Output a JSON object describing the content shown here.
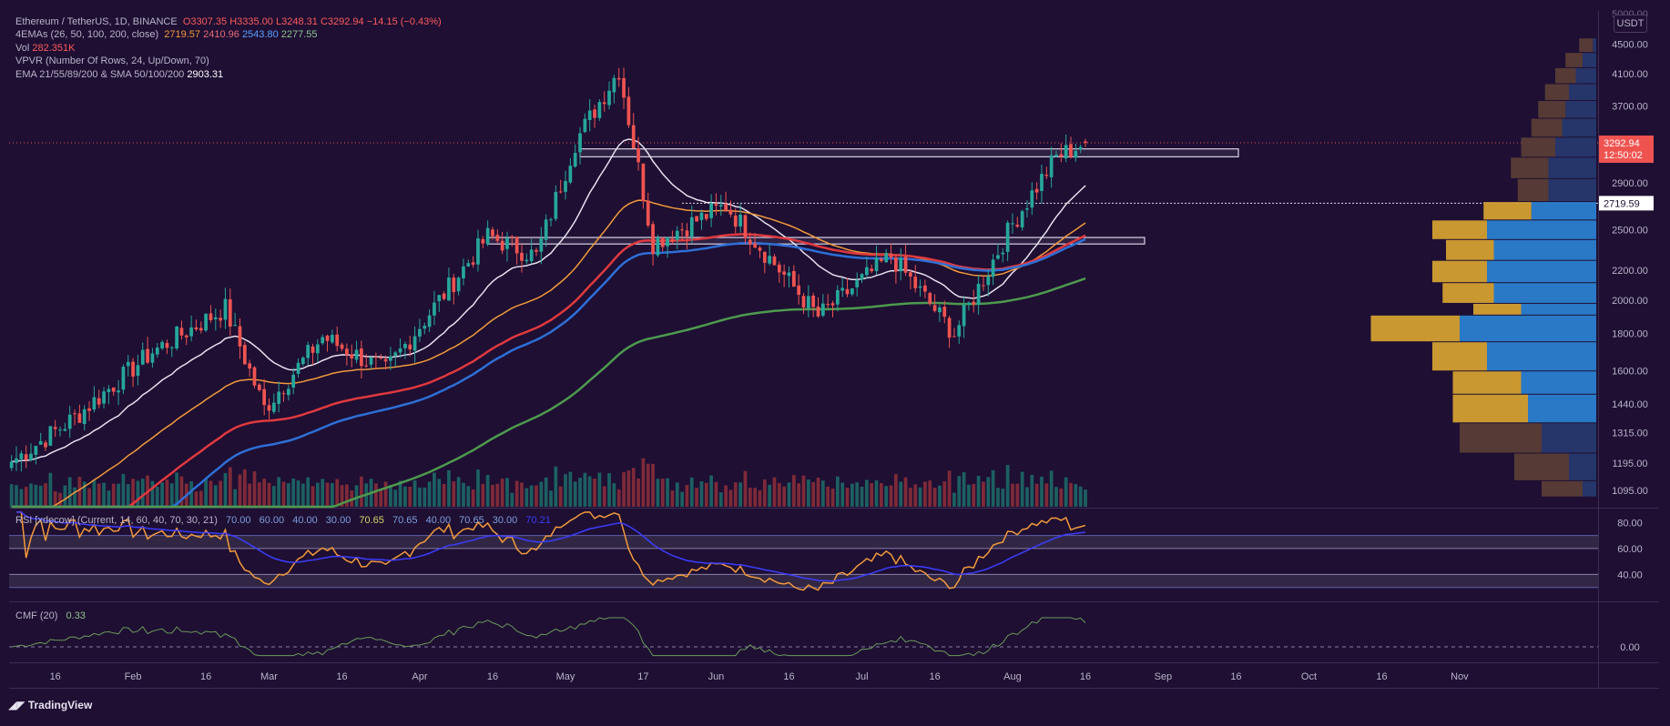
{
  "legend": {
    "symbol": "Ethereum / TetherUS, 1D, BINANCE",
    "open": "O3307.35",
    "high": "H3335.00",
    "low": "L3248.31",
    "close": "C3292.94",
    "change": "−14.15 (−0.43%)",
    "ema4_label": "4EMAs (26, 50, 100, 200, close)",
    "ema4_values": [
      "2719.57",
      "2410.96",
      "2543.80",
      "2277.55"
    ],
    "vol_label": "Vol",
    "vol_value": "282.351K",
    "vpvr_label": "VPVR (Number Of Rows, 24, Up/Down, 70)",
    "ema_sma_label": "EMA 21/55/89/200 & SMA 50/100/200",
    "ema_sma_value": "2903.31"
  },
  "rsi_legend": {
    "label": "RSI [xdecow] (Current, 14, 60, 40, 70, 30, 21)",
    "values": [
      "70.00",
      "60.00",
      "40.00",
      "30.00",
      "70.65",
      "70.65",
      "40.00",
      "70.65",
      "30.00",
      "70.21"
    ]
  },
  "cmf_legend": {
    "label": "CMF (20)",
    "value": "0.33"
  },
  "price_axis": {
    "currency": "USDT",
    "ticks": [
      "4500.00",
      "4100.00",
      "3700.00",
      "3300.00",
      "2900.00",
      "2500.00",
      "2200.00",
      "2000.00",
      "1800.00",
      "1600.00",
      "1440.00",
      "1315.00",
      "1195.00",
      "1095.00"
    ],
    "top_cut": "5000.00",
    "last_price": "3292.94",
    "countdown": "12:50:02",
    "marker_price": "2719.59"
  },
  "rsi_axis": {
    "ticks": [
      "80.00",
      "60.00",
      "40.00"
    ]
  },
  "cmf_axis": {
    "ticks": [
      "0.00"
    ]
  },
  "time_axis": {
    "ticks": [
      "16",
      "Feb",
      "16",
      "Mar",
      "16",
      "Apr",
      "16",
      "May",
      "17",
      "Jun",
      "16",
      "Jul",
      "16",
      "Aug",
      "16",
      "Sep",
      "16",
      "Oct",
      "16",
      "Nov"
    ]
  },
  "logo": {
    "text": "TradingView"
  },
  "colors": {
    "background": "#1e0f33",
    "up": "#26a69a",
    "down": "#ef5350",
    "ema21": "#e6e0ee",
    "ema55": "#f39a3a",
    "ema89": "#e0393e",
    "ema200": "#2e6fd6",
    "sma200": "#4e9a4e",
    "vpvr_up": "#d4a030",
    "vpvr_down": "#2a7fd0"
  },
  "chart_data": {
    "type": "candlestick",
    "symbol": "ETHUSDT",
    "interval": "1D",
    "x_range": [
      "2021-01-07",
      "2021-11-30"
    ],
    "y_scale": "log",
    "y_range": [
      1040,
      5000
    ],
    "ohlc_keypoints": [
      {
        "date": "2021-01-07",
        "close": 1200
      },
      {
        "date": "2021-01-20",
        "close": 1380
      },
      {
        "date": "2021-02-05",
        "close": 1700
      },
      {
        "date": "2021-02-20",
        "close": 1950
      },
      {
        "date": "2021-02-28",
        "close": 1420
      },
      {
        "date": "2021-03-12",
        "close": 1780
      },
      {
        "date": "2021-03-25",
        "close": 1600
      },
      {
        "date": "2021-04-15",
        "close": 2450
      },
      {
        "date": "2021-04-25",
        "close": 2300
      },
      {
        "date": "2021-05-03",
        "close": 3300
      },
      {
        "date": "2021-05-12",
        "close": 4150
      },
      {
        "date": "2021-05-19",
        "close": 2400
      },
      {
        "date": "2021-06-03",
        "close": 2700
      },
      {
        "date": "2021-06-22",
        "close": 1900
      },
      {
        "date": "2021-07-07",
        "close": 2300
      },
      {
        "date": "2021-07-20",
        "close": 1800
      },
      {
        "date": "2021-08-01",
        "close": 2550
      },
      {
        "date": "2021-08-10",
        "close": 3150
      },
      {
        "date": "2021-08-16",
        "close": 3292.94
      }
    ],
    "last_candle": {
      "open": 3307.35,
      "high": 3335.0,
      "low": 3248.31,
      "close": 3292.94
    },
    "moving_averages": [
      {
        "name": "EMA 21",
        "last": 2903.31
      },
      {
        "name": "EMA 26",
        "last": 2719.57
      },
      {
        "name": "EMA 50",
        "last": 2410.96
      },
      {
        "name": "EMA 100",
        "last": 2543.8
      },
      {
        "name": "EMA 200",
        "last": 2277.55
      }
    ],
    "zones": [
      {
        "name": "resistance",
        "low": 3150,
        "high": 3230
      },
      {
        "name": "support",
        "low": 2390,
        "high": 2440
      }
    ],
    "volume_last": "282.351K",
    "rsi": {
      "last": 70.21,
      "levels": [
        30,
        40,
        60,
        70
      ]
    },
    "cmf": {
      "period": 20,
      "last": 0.33
    }
  }
}
